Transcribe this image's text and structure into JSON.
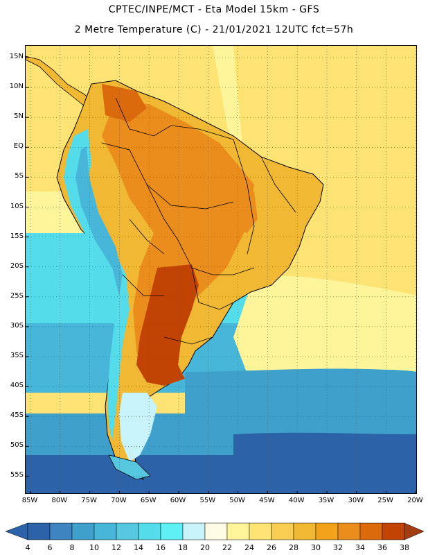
{
  "header": {
    "title_line1": "CPTEC/INPE/MCT -  Eta Model 15km - GFS",
    "title_line2": "2 Metre Temperature (C) - 21/01/2021 12UTC fct=57h"
  },
  "axes": {
    "lat_labels": [
      "15N",
      "10N",
      "5N",
      "EQ",
      "5S",
      "10S",
      "15S",
      "20S",
      "25S",
      "30S",
      "35S",
      "40S",
      "45S",
      "50S",
      "55S"
    ],
    "lon_labels": [
      "85W",
      "80W",
      "75W",
      "70W",
      "65W",
      "60W",
      "55W",
      "50W",
      "45W",
      "40W",
      "35W",
      "30W",
      "25W",
      "20W"
    ]
  },
  "colorbar": {
    "labels": [
      "4",
      "6",
      "8",
      "10",
      "12",
      "14",
      "16",
      "18",
      "20",
      "22",
      "24",
      "26",
      "28",
      "30",
      "32",
      "34",
      "36",
      "38"
    ],
    "colors": [
      "#2b62a8",
      "#3d84c0",
      "#3fa0cb",
      "#48b6d8",
      "#55c8e0",
      "#55dceb",
      "#5ff0f5",
      "#c9f3fb",
      "#fefbe4",
      "#fef59a",
      "#fde374",
      "#f7cd52",
      "#f0b833",
      "#f3a31b",
      "#eb8d1d",
      "#da6a0c",
      "#c24404",
      "#a23c12"
    ]
  },
  "map": {
    "ocean_warm": "#fde374",
    "ocean_pale": "#fef59a",
    "land_tropic": "#f0b833",
    "land_hot": "#eb8d1d",
    "land_very_hot": "#c24404",
    "andes": "#55c8e0",
    "ocean_cold": "#3fa0cb",
    "ocean_deep": "#2b62a8",
    "border_color": "#000000"
  }
}
